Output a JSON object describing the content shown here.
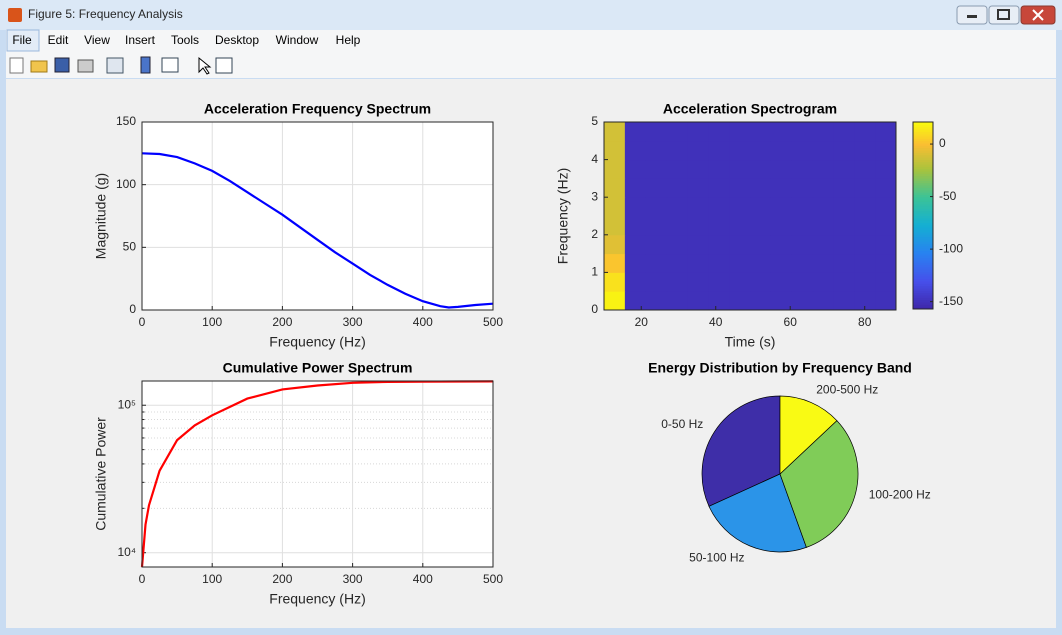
{
  "window": {
    "title": "Figure 5: Frequency Analysis",
    "menu": [
      "File",
      "Edit",
      "View",
      "Insert",
      "Tools",
      "Desktop",
      "Window",
      "Help"
    ]
  },
  "chart_data": [
    {
      "type": "line",
      "title": "Acceleration Frequency Spectrum",
      "xlabel": "Frequency (Hz)",
      "ylabel": "Magnitude (g)",
      "x": [
        0,
        25,
        50,
        75,
        100,
        125,
        150,
        175,
        200,
        225,
        250,
        275,
        300,
        325,
        350,
        375,
        400,
        425,
        437,
        450,
        475,
        500
      ],
      "values": [
        125,
        124.5,
        122,
        117,
        111,
        103,
        94,
        85,
        76,
        66,
        56,
        46,
        37,
        28,
        20,
        13,
        7,
        3,
        2,
        2.5,
        4,
        5
      ],
      "color": "#0000ff",
      "xlim": [
        0,
        500
      ],
      "ylim": [
        0,
        150
      ],
      "xticks": [
        0,
        100,
        200,
        300,
        400,
        500
      ],
      "yticks": [
        0,
        50,
        100,
        150
      ],
      "grid": true,
      "log_y": false
    },
    {
      "type": "heatmap",
      "title": "Acceleration Spectrogram",
      "xlabel": "Time (s)",
      "ylabel": "Frequency (Hz)",
      "x": [
        12.8,
        18.4,
        24,
        29.6,
        35.2,
        40.8,
        46.4,
        52,
        57.6,
        63.2,
        68.8,
        74.4,
        80,
        85.6
      ],
      "y": [
        0.25,
        0.75,
        1.25,
        1.75,
        2.25,
        2.75,
        3.25,
        3.75,
        4.25,
        4.75
      ],
      "z": [
        [
          18,
          -150,
          -150,
          -150,
          -150,
          -150,
          -150,
          -150,
          -150,
          -150,
          -150,
          -150,
          -150,
          -150
        ],
        [
          12,
          -150,
          -150,
          -150,
          -150,
          -150,
          -150,
          -150,
          -150,
          -150,
          -150,
          -150,
          -150,
          -150
        ],
        [
          2,
          -150,
          -150,
          -150,
          -150,
          -150,
          -150,
          -150,
          -150,
          -150,
          -150,
          -150,
          -150,
          -150
        ],
        [
          -8,
          -150,
          -150,
          -150,
          -150,
          -150,
          -150,
          -150,
          -150,
          -150,
          -150,
          -150,
          -150,
          -150
        ],
        [
          -12,
          -150,
          -150,
          -150,
          -150,
          -150,
          -150,
          -150,
          -150,
          -150,
          -150,
          -150,
          -150,
          -150
        ],
        [
          -12,
          -150,
          -150,
          -150,
          -150,
          -150,
          -150,
          -150,
          -150,
          -150,
          -150,
          -150,
          -150,
          -150
        ],
        [
          -12,
          -150,
          -150,
          -150,
          -150,
          -150,
          -150,
          -150,
          -150,
          -150,
          -150,
          -150,
          -150,
          -150
        ],
        [
          -12,
          -150,
          -150,
          -150,
          -150,
          -150,
          -150,
          -150,
          -150,
          -150,
          -150,
          -150,
          -150,
          -150
        ],
        [
          -12,
          -150,
          -150,
          -150,
          -150,
          -150,
          -150,
          -150,
          -150,
          -150,
          -150,
          -150,
          -150,
          -150
        ],
        [
          -12,
          -150,
          -150,
          -150,
          -150,
          -150,
          -150,
          -150,
          -150,
          -150,
          -150,
          -150,
          -150,
          -150
        ]
      ],
      "xlim": [
        10,
        88.4
      ],
      "ylim": [
        0,
        5
      ],
      "xticks": [
        20,
        40,
        60,
        80
      ],
      "yticks": [
        0,
        1,
        2,
        3,
        4,
        5
      ],
      "clim": [
        -157,
        21
      ],
      "colorbar_ticks": [
        0,
        -50,
        -100,
        -150
      ],
      "colormap": "parula"
    },
    {
      "type": "line",
      "title": "Cumulative Power Spectrum",
      "xlabel": "Frequency (Hz)",
      "ylabel": "Cumulative Power",
      "x": [
        0,
        5,
        10,
        25,
        50,
        75,
        100,
        150,
        200,
        250,
        300,
        350,
        400,
        450,
        500
      ],
      "values": [
        8000,
        15500,
        21000,
        36000,
        58000,
        73000,
        85500,
        111000,
        128000,
        136000,
        142000,
        144000,
        144500,
        144800,
        145000
      ],
      "color": "#ff0000",
      "xlim": [
        0,
        500
      ],
      "ylim": [
        8000,
        146000
      ],
      "xticks": [
        0,
        100,
        200,
        300,
        400,
        500
      ],
      "yticks": [
        {
          "value": 10000,
          "label": "10⁴"
        },
        {
          "value": 100000,
          "label": "10⁵"
        }
      ],
      "yminorticks": [
        20000,
        30000,
        40000,
        50000,
        60000,
        70000,
        80000,
        90000
      ],
      "grid": true,
      "log_y": true
    },
    {
      "type": "pie",
      "title": "Energy Distribution by Frequency Band",
      "categories": [
        "0-50 Hz",
        "50-100 Hz",
        "100-200 Hz",
        "200-500 Hz"
      ],
      "values": [
        31.8,
        23.7,
        31.5,
        13
      ],
      "colors": [
        "#3e2ea8",
        "#2b94e8",
        "#80cc58",
        "#f9fa14"
      ]
    }
  ]
}
